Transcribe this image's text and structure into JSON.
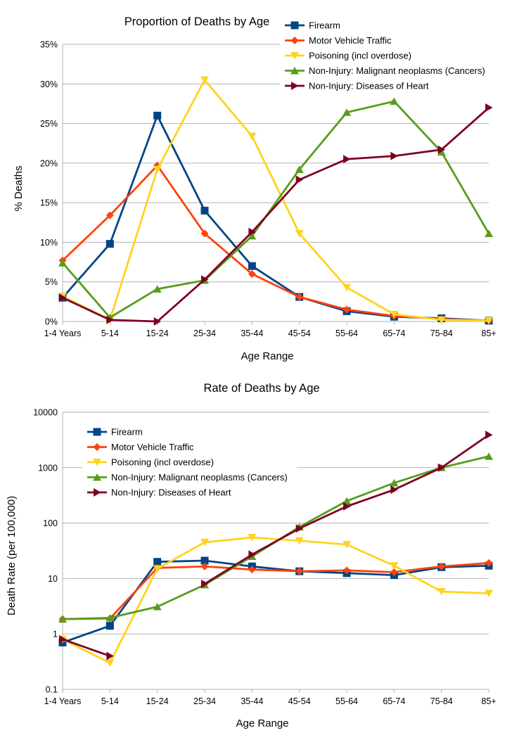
{
  "chart_data": [
    {
      "type": "line",
      "title": "Proportion of Deaths by Age",
      "xlabel": "Age Range",
      "ylabel": "% Deaths",
      "yscale": "linear",
      "ylim": [
        0,
        35
      ],
      "yticks": [
        0,
        5,
        10,
        15,
        20,
        25,
        30,
        35
      ],
      "ytick_labels": [
        "0%",
        "5%",
        "10%",
        "15%",
        "20%",
        "25%",
        "30%",
        "35%"
      ],
      "grid": true,
      "legend_position": "top-right",
      "categories": [
        "1-4 Years",
        "5-14",
        "15-24",
        "25-34",
        "35-44",
        "45-54",
        "55-64",
        "65-74",
        "75-84",
        "85+"
      ],
      "series": [
        {
          "name": "Firearm",
          "color": "#004586",
          "marker": "square",
          "values": [
            3.0,
            9.8,
            26.0,
            14.0,
            7.0,
            3.1,
            1.3,
            0.6,
            0.4,
            0.1
          ]
        },
        {
          "name": "Motor Vehicle Traffic",
          "color": "#ff420e",
          "marker": "diamond",
          "values": [
            7.7,
            13.4,
            19.7,
            11.1,
            6.0,
            3.1,
            1.5,
            0.7,
            0.3,
            0.1
          ]
        },
        {
          "name": "Poisoning (incl overdose)",
          "color": "#ffd320",
          "marker": "triangle-down",
          "values": [
            3.2,
            0.2,
            19.2,
            30.5,
            23.4,
            11.1,
            4.3,
            0.9,
            0.2,
            0.1
          ]
        },
        {
          "name": "Non-Injury: Malignant neoplasms (Cancers)",
          "color": "#579d1c",
          "marker": "triangle-up",
          "values": [
            7.4,
            0.5,
            4.1,
            5.2,
            10.8,
            19.2,
            26.4,
            27.8,
            21.4,
            11.1
          ]
        },
        {
          "name": "Non-Injury: Diseases of Heart",
          "color": "#7e0021",
          "marker": "triangle-right",
          "values": [
            3.0,
            0.2,
            0.0,
            5.3,
            11.3,
            17.9,
            20.5,
            20.9,
            21.7,
            27.0
          ]
        }
      ]
    },
    {
      "type": "line",
      "title": "Rate of Deaths by Age",
      "xlabel": "Age Range",
      "ylabel": "Death Rate (per 100,000)",
      "yscale": "log",
      "ylim": [
        0.1,
        10000
      ],
      "yticks": [
        0.1,
        1,
        10,
        100,
        1000,
        10000
      ],
      "ytick_labels": [
        "0.1",
        "1",
        "10",
        "100",
        "1000",
        "10000"
      ],
      "grid": true,
      "legend_position": "top-left",
      "categories": [
        "1-4 Years",
        "5-14",
        "15-24",
        "25-34",
        "35-44",
        "45-54",
        "55-64",
        "65-74",
        "75-84",
        "85+"
      ],
      "series": [
        {
          "name": "Firearm",
          "color": "#004586",
          "marker": "square",
          "values": [
            0.7,
            1.4,
            20,
            21,
            16.5,
            13.5,
            12.5,
            11.5,
            16,
            17
          ]
        },
        {
          "name": "Motor Vehicle Traffic",
          "color": "#ff420e",
          "marker": "diamond",
          "values": [
            1.85,
            1.9,
            15.5,
            16.5,
            14.5,
            13.5,
            14,
            13,
            16.5,
            19
          ]
        },
        {
          "name": "Poisoning (incl overdose)",
          "color": "#ffd320",
          "marker": "triangle-down",
          "values": [
            0.8,
            0.3,
            15,
            45,
            55,
            48,
            41,
            17,
            5.8,
            5.4
          ]
        },
        {
          "name": "Non-Injury: Malignant neoplasms (Cancers)",
          "color": "#579d1c",
          "marker": "triangle-up",
          "values": [
            1.85,
            1.95,
            3.1,
            7.7,
            25,
            85,
            250,
            530,
            1000,
            1600
          ]
        },
        {
          "name": "Non-Injury: Diseases of Heart",
          "color": "#7e0021",
          "marker": "triangle-right",
          "values": [
            0.8,
            0.4,
            null,
            8,
            27,
            80,
            200,
            400,
            1000,
            3900
          ]
        }
      ]
    }
  ]
}
